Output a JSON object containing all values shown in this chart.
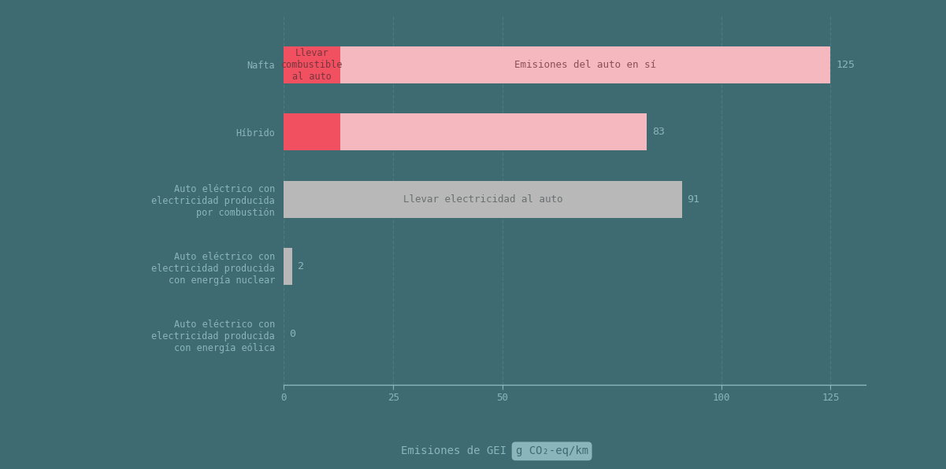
{
  "background_color": "#3d6b71",
  "bar_height": 0.55,
  "categories": [
    "Nafta",
    "Híbrido",
    "Auto eléctrico con\nelectricidad producida\npor combustión",
    "Auto eléctrico con\nelectricidad producida\ncon energía nuclear",
    "Auto eléctrico con\nelectricidad producida\ncon energía eólica"
  ],
  "seg1_values": [
    13,
    13,
    0,
    0,
    0
  ],
  "seg2_values": [
    112,
    70,
    91,
    2,
    0
  ],
  "seg1_color": "#f05060",
  "seg2_color_pink": "#f5b8be",
  "seg2_color_gray": "#b8b8b8",
  "seg2_types": [
    "pink",
    "pink",
    "gray",
    "gray",
    "gray"
  ],
  "totals": [
    125,
    83,
    91,
    2,
    0
  ],
  "label_inside_red_0": "Llevar\ncombustible\nal auto",
  "label_inside_pink_0": "Emisiones del auto en sí",
  "label_inside_gray_2": "Llevar electricidad al auto",
  "xticks": [
    0,
    25,
    50,
    100,
    125
  ],
  "xlim": [
    0,
    133
  ],
  "xlabel": "Emisiones de GEI",
  "xlabel_unit": "g CO₂-eq/km",
  "text_color": "#8ab5bb",
  "value_label_color": "#8ab5bb",
  "label_color_inside_red": "#7a3540",
  "label_color_inside_pink": "#8a5055",
  "label_color_inside_gray": "#6a7070",
  "ylabel_color": "#8ab5bb",
  "grid_color": "#4a7a82",
  "axis_color": "#8ab5bb",
  "unit_box_color": "#8ab5bb",
  "unit_text_color": "#3d6b71"
}
